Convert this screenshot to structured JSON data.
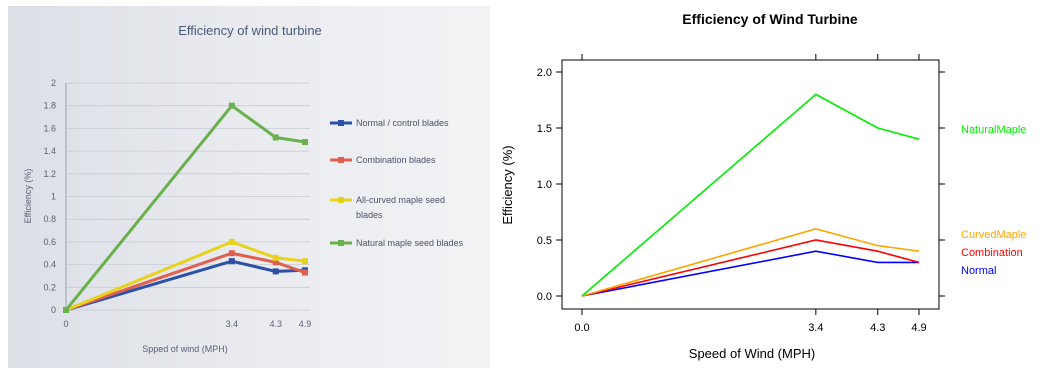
{
  "chart_data": [
    {
      "type": "line",
      "title": "Efficiency of wind turbine",
      "xlabel": "Spped of wind (MPH)",
      "ylabel": "Efficiency (%)",
      "x": [
        0,
        3.4,
        4.3,
        4.9
      ],
      "x_tick_labels": [
        "0",
        "3.4",
        "4.3",
        "4.9"
      ],
      "y_tick_labels": [
        "0",
        "0.2",
        "0.4",
        "0.6",
        "0.8",
        "1",
        "1.2",
        "1.4",
        "1.6",
        "1.8",
        "2"
      ],
      "ylim": [
        0,
        2
      ],
      "grid": true,
      "legend_position": "right",
      "series": [
        {
          "name": "Normal / control blades",
          "values": [
            0,
            0.43,
            0.34,
            0.35
          ],
          "color": "#2b50a8"
        },
        {
          "name": "Combination blades",
          "values": [
            0,
            0.5,
            0.42,
            0.33
          ],
          "color": "#e06050"
        },
        {
          "name": "All-curved maple seed blades",
          "values": [
            0,
            0.6,
            0.46,
            0.43
          ],
          "color": "#e8d21c"
        },
        {
          "name": "Natural maple seed blades",
          "values": [
            0,
            1.8,
            1.52,
            1.48
          ],
          "color": "#6ab04c"
        }
      ]
    },
    {
      "type": "line",
      "title": "Efficiency of Wind Turbine",
      "xlabel": "Speed of Wind (MPH)",
      "ylabel": "Efficiency (%)",
      "x": [
        0,
        3.4,
        4.3,
        4.9
      ],
      "x_tick_labels": [
        "0.0",
        "3.4",
        "4.3",
        "4.9"
      ],
      "y_tick_labels": [
        "0.0",
        "0.5",
        "1.0",
        "1.5",
        "2.0"
      ],
      "ylim": [
        0,
        2
      ],
      "grid": false,
      "legend_position": "right (direct labels)",
      "series": [
        {
          "name": "Normal",
          "values": [
            0,
            0.4,
            0.3,
            0.3
          ],
          "color": "#0000ff"
        },
        {
          "name": "Combination",
          "values": [
            0,
            0.5,
            0.4,
            0.3
          ],
          "color": "#ff0000"
        },
        {
          "name": "CurvedMaple",
          "values": [
            0,
            0.6,
            0.45,
            0.4
          ],
          "color": "#ffa500"
        },
        {
          "name": "NaturalMaple",
          "values": [
            0,
            1.8,
            1.5,
            1.4
          ],
          "color": "#00ee00"
        }
      ]
    }
  ]
}
